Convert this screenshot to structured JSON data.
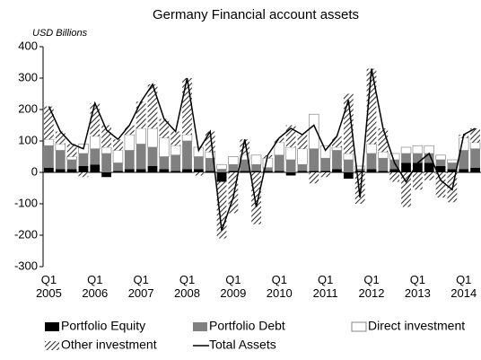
{
  "chart_data": {
    "type": "bar",
    "stacked": true,
    "title": "Germany Financial account assets",
    "y_label": "USD Billions",
    "categories": [
      "Q1\n2005",
      null,
      null,
      null,
      "Q1\n2006",
      null,
      null,
      null,
      "Q1\n2007",
      null,
      null,
      null,
      "Q1\n2008",
      null,
      null,
      null,
      "Q1\n2009",
      null,
      null,
      null,
      "Q1\n2010",
      null,
      null,
      null,
      "Q1\n2011",
      null,
      null,
      null,
      "Q1\n2012",
      null,
      null,
      null,
      "Q1\n2013",
      null,
      null,
      null,
      "Q1\n2014",
      null
    ],
    "ylim": [
      -300,
      400
    ],
    "yticks": [
      -300,
      -200,
      -100,
      0,
      100,
      200,
      300,
      400
    ],
    "series": [
      {
        "name": "Portfolio Equity",
        "color": "#000000",
        "values": [
          15,
          10,
          10,
          20,
          25,
          -15,
          5,
          10,
          10,
          20,
          10,
          5,
          10,
          10,
          5,
          -30,
          5,
          5,
          5,
          5,
          5,
          -10,
          5,
          5,
          5,
          10,
          -20,
          5,
          10,
          5,
          10,
          30,
          30,
          30,
          20,
          10,
          10,
          15
        ]
      },
      {
        "name": "Portfolio Debt",
        "color": "#808080",
        "values": [
          70,
          60,
          30,
          40,
          50,
          60,
          25,
          60,
          80,
          60,
          40,
          50,
          90,
          40,
          40,
          10,
          20,
          35,
          20,
          10,
          50,
          40,
          20,
          70,
          40,
          60,
          40,
          5,
          50,
          40,
          30,
          30,
          30,
          30,
          20,
          20,
          60,
          60
        ]
      },
      {
        "name": "Direct investment",
        "color": "#ffffff",
        "values": [
          20,
          20,
          10,
          30,
          40,
          20,
          40,
          50,
          50,
          60,
          60,
          30,
          20,
          30,
          20,
          15,
          25,
          15,
          30,
          30,
          40,
          40,
          50,
          110,
          40,
          10,
          20,
          10,
          30,
          20,
          20,
          20,
          25,
          25,
          15,
          10,
          40,
          20
        ]
      },
      {
        "name": "Other investment",
        "color": "#666666",
        "pattern": "hatch",
        "values": [
          105,
          40,
          40,
          -15,
          105,
          70,
          35,
          30,
          85,
          140,
          60,
          45,
          180,
          -10,
          65,
          -180,
          -130,
          50,
          -165,
          10,
          15,
          70,
          45,
          -35,
          -15,
          35,
          190,
          -100,
          240,
          75,
          -30,
          -110,
          -55,
          -25,
          -80,
          -95,
          10,
          45
        ]
      },
      {
        "name": "Total Assets",
        "type": "line",
        "color": "#000000",
        "values": [
          210,
          130,
          90,
          75,
          220,
          135,
          105,
          150,
          225,
          280,
          170,
          130,
          300,
          70,
          130,
          -185,
          -80,
          105,
          -110,
          55,
          110,
          140,
          120,
          150,
          70,
          115,
          230,
          -80,
          330,
          140,
          30,
          -30,
          30,
          60,
          -25,
          -55,
          120,
          140
        ]
      }
    ]
  }
}
